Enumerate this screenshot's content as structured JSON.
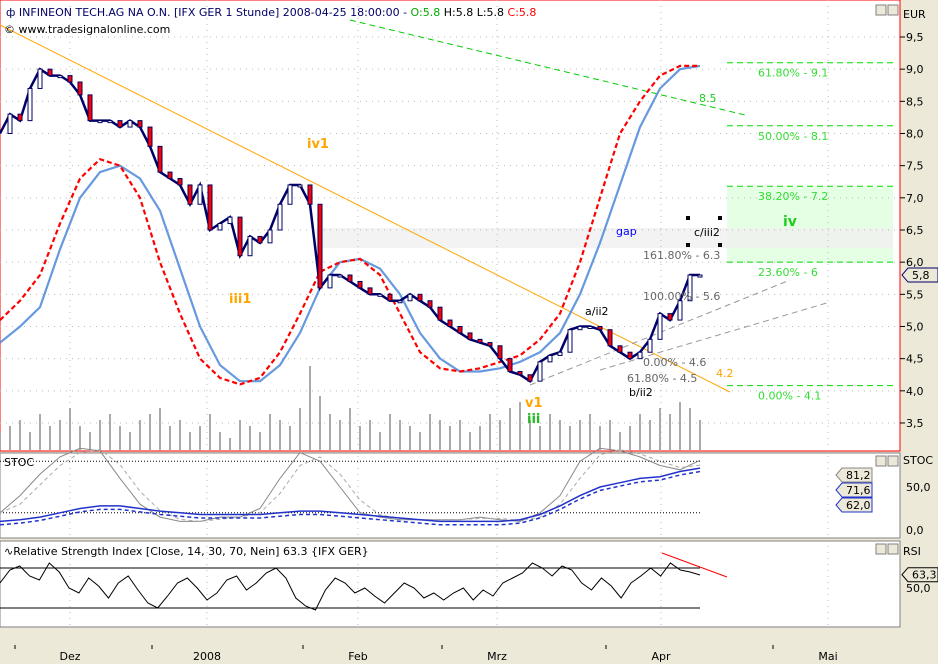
{
  "header": {
    "symbol_icon": "candle-icon",
    "title": "INFINEON TECH.AG NA O.N. [IFX GER  1 Stunde] 2008-04-25 18:00:00 - ",
    "open": "O:5.8",
    "high": "H:5.8",
    "low": "L:5.8",
    "close": "C:5.8",
    "copyright": "© www.tradesignalonline.com"
  },
  "colors": {
    "candle": "#000066",
    "red": "#ff0000",
    "blue_ma": "#6699dd",
    "fib": "#00dd00",
    "trend": "#ffa500",
    "gap": "#f0f0f0",
    "fib_zone": "#e5ffe5"
  },
  "chart_data": [
    {
      "type": "line",
      "title": "INFINEON TECH.AG NA O.N. [IFX GER  1 Stunde]",
      "ylabel": "EUR",
      "ylim": [
        3.0,
        9.8
      ],
      "yticks": [
        "9,5",
        "9,0",
        "8,5",
        "8,0",
        "7,5",
        "7,0",
        "6,5",
        "6,0",
        "5,5",
        "5,0",
        "4,5",
        "4,0",
        "3,5"
      ],
      "ytick_values": [
        9.5,
        9.0,
        8.5,
        8.0,
        7.5,
        7.0,
        6.5,
        6.0,
        5.5,
        5.0,
        4.5,
        4.0,
        3.5
      ],
      "xticks": [
        "Dez",
        "2008",
        "Feb",
        "Mrz",
        "Apr",
        "Mai"
      ],
      "last_value_label": "5,8",
      "price": [
        8.0,
        8.3,
        8.2,
        8.7,
        9.0,
        8.9,
        8.9,
        8.8,
        8.6,
        8.2,
        8.2,
        8.2,
        8.1,
        8.2,
        8.1,
        7.8,
        7.4,
        7.3,
        7.2,
        6.9,
        7.2,
        6.5,
        6.6,
        6.7,
        6.1,
        6.4,
        6.3,
        6.5,
        6.9,
        7.2,
        7.2,
        6.9,
        5.6,
        5.8,
        5.8,
        5.7,
        5.6,
        5.5,
        5.5,
        5.4,
        5.4,
        5.5,
        5.4,
        5.3,
        5.1,
        5.0,
        4.9,
        4.8,
        4.75,
        4.7,
        4.5,
        4.3,
        4.25,
        4.15,
        4.45,
        4.55,
        4.6,
        4.95,
        5.0,
        5.0,
        4.95,
        4.7,
        4.6,
        4.5,
        4.6,
        4.8,
        5.2,
        5.1,
        5.4,
        5.8,
        5.8
      ],
      "blue_line": [
        4.75,
        5.0,
        5.3,
        6.2,
        7.0,
        7.4,
        7.5,
        7.3,
        6.8,
        5.9,
        5.0,
        4.4,
        4.15,
        4.15,
        4.4,
        4.9,
        5.6,
        6.0,
        6.05,
        5.9,
        5.5,
        4.9,
        4.5,
        4.3,
        4.3,
        4.35,
        4.45,
        4.6,
        4.9,
        5.5,
        6.3,
        7.2,
        8.1,
        8.7,
        9.0,
        9.05
      ],
      "red_dashed_line": [
        5.1,
        5.4,
        5.8,
        6.6,
        7.3,
        7.6,
        7.5,
        7.0,
        6.0,
        5.2,
        4.5,
        4.2,
        4.1,
        4.2,
        4.6,
        5.2,
        5.85,
        6.0,
        6.05,
        5.8,
        5.2,
        4.6,
        4.35,
        4.3,
        4.35,
        4.45,
        4.55,
        4.8,
        5.2,
        6.0,
        7.0,
        8.0,
        8.5,
        8.9,
        9.05,
        9.05
      ],
      "volume": [
        3,
        4,
        5,
        3,
        6,
        4,
        5,
        7,
        4,
        3,
        5,
        6,
        4,
        3,
        5,
        6,
        7,
        4,
        5,
        3,
        4,
        6,
        3,
        2,
        5,
        4,
        3,
        6,
        5,
        4,
        7,
        14,
        9,
        6,
        5,
        7,
        4,
        5,
        3,
        6,
        5,
        4,
        3,
        6,
        5,
        4,
        5,
        3,
        4,
        6,
        5,
        7,
        8,
        5,
        4,
        6,
        5,
        4,
        5,
        6,
        4,
        5,
        3,
        4,
        6,
        5,
        7,
        6,
        8,
        7,
        5
      ],
      "fib_levels": [
        {
          "label": "61.80% - 9.1",
          "value": 9.1
        },
        {
          "label": "50.00% - 8.1",
          "value": 8.12
        },
        {
          "label": "38.20% - 7.2",
          "value": 7.18
        },
        {
          "label": "23.60% - 6",
          "value": 6.0
        },
        {
          "label": "0.00% - 4.1",
          "value": 4.08
        }
      ],
      "annotations": {
        "iv1": "iv1",
        "iii1": "iii1",
        "v1": "v1",
        "iii": "iii",
        "a_ii2": "a/ii2",
        "b_ii2": "b/ii2",
        "c_iii2": "c/iii2",
        "gap": "gap",
        "iv": "iv",
        "target_85": "8.5",
        "target_42": "4.2",
        "ext_1618": "161.80% - 6.3",
        "ext_100": "100.00% - 5.6",
        "ext_0": "0.00% - 4.6",
        "ret_618": "61.80% - 4.5"
      }
    },
    {
      "type": "line",
      "title": "STOC",
      "yticks": [
        "50,0",
        "0,0"
      ],
      "ytick_values": [
        50,
        0
      ],
      "last_labels": [
        "81,2",
        "71,6",
        "62,0"
      ],
      "grey": [
        20,
        40,
        65,
        85,
        95,
        92,
        60,
        30,
        15,
        10,
        10,
        15,
        15,
        25,
        60,
        90,
        80,
        50,
        20,
        15,
        12,
        12,
        12,
        12,
        15,
        12,
        10,
        20,
        40,
        80,
        95,
        92,
        85,
        75,
        70,
        81
      ],
      "blue": [
        10,
        12,
        15,
        20,
        25,
        28,
        28,
        25,
        22,
        20,
        18,
        18,
        18,
        18,
        20,
        22,
        22,
        20,
        18,
        16,
        14,
        12,
        10,
        10,
        10,
        10,
        12,
        18,
        28,
        40,
        50,
        55,
        60,
        62,
        68,
        72
      ]
    },
    {
      "type": "line",
      "title": "Relative Strength Index [Close, 14, 30, 70, Nein] 63.3 {IFX GER}",
      "yticks": [
        "50,0"
      ],
      "ytick_values": [
        50
      ],
      "last_value_label": "63,3",
      "levels": [
        30,
        70
      ],
      "values": [
        55,
        68,
        72,
        62,
        58,
        75,
        66,
        50,
        45,
        60,
        52,
        40,
        55,
        62,
        48,
        35,
        30,
        42,
        55,
        60,
        50,
        38,
        45,
        58,
        62,
        48,
        55,
        65,
        70,
        60,
        40,
        32,
        28,
        48,
        60,
        55,
        45,
        50,
        42,
        35,
        45,
        55,
        50,
        40,
        45,
        38,
        45,
        50,
        38,
        48,
        42,
        55,
        60,
        65,
        75,
        70,
        62,
        72,
        68,
        55,
        48,
        60,
        52,
        40,
        55,
        62,
        70,
        62,
        75,
        68,
        66,
        63
      ]
    }
  ],
  "rsi_title": "Relative Strength Index [Close, 14, 30, 70, Nein] 63.3 {IFX GER}",
  "axis_unit": "EUR",
  "rsi_label": "RSI",
  "stoc_label": "STOC"
}
